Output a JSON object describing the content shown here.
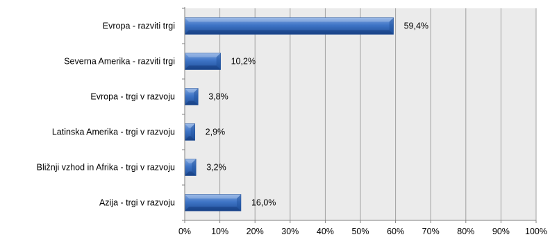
{
  "chart_data": {
    "type": "bar",
    "orientation": "horizontal",
    "title": "",
    "xlabel": "",
    "ylabel": "",
    "categories": [
      "Evropa - razviti trgi",
      "Severna Amerika - razviti trgi",
      "Evropa - trgi v razvoju",
      "Latinska Amerika - trgi v razvoju",
      "Bližnji vzhod in Afrika - trgi v razvoju",
      "Azija - trgi v razvoju"
    ],
    "values": [
      59.4,
      10.2,
      3.8,
      2.9,
      3.2,
      16.0
    ],
    "data_labels": [
      "59,4%",
      "10,2%",
      "3,8%",
      "2,9%",
      "3,2%",
      "16,0%"
    ],
    "xlim": [
      0,
      100
    ],
    "x_ticks": [
      0,
      10,
      20,
      30,
      40,
      50,
      60,
      70,
      80,
      90,
      100
    ],
    "x_tick_labels": [
      "0%",
      "10%",
      "20%",
      "30%",
      "40%",
      "50%",
      "60%",
      "70%",
      "80%",
      "90%",
      "100%"
    ],
    "grid": true,
    "legend": "none",
    "colors": {
      "bar": "#3e74c6",
      "bar_light": "#7fa6e0",
      "bar_dark": "#1f4f99",
      "plot_background": "#ebebeb",
      "gridline": "#a0a0a0"
    }
  }
}
